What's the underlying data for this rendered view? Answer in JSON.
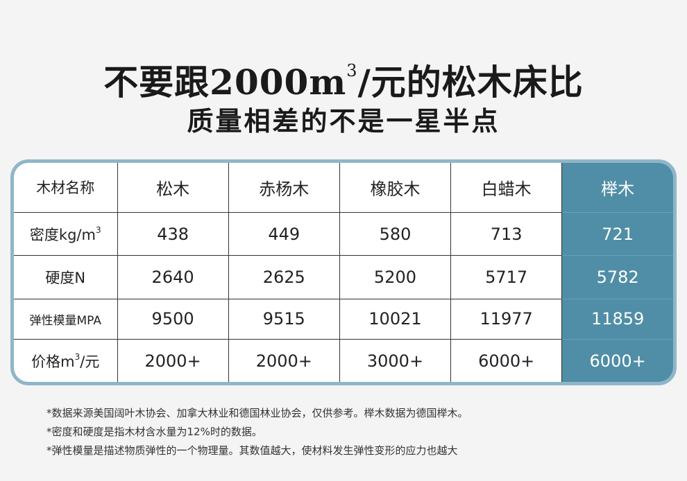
{
  "title": {
    "prefix": "不要跟2000m",
    "sup": "3",
    "suffix": "/元的松木床比"
  },
  "subtitle": "质量相差的不是一星半点",
  "table": {
    "header": {
      "label": "木材名称",
      "woods": [
        "松木",
        "赤杨木",
        "橡胶木",
        "白蜡木",
        "榉木"
      ]
    },
    "rows": [
      {
        "label": "密度kg/m",
        "label_sup": "3",
        "values": [
          "438",
          "449",
          "580",
          "713",
          "721"
        ]
      },
      {
        "label": "硬度N",
        "label_sup": "",
        "values": [
          "2640",
          "2625",
          "5200",
          "5717",
          "5782"
        ]
      },
      {
        "label": "弹性模量MPA",
        "label_sup": "",
        "values": [
          "9500",
          "9515",
          "10021",
          "11977",
          "11859"
        ]
      },
      {
        "label_prefix": "价格m",
        "label_sup": "3",
        "label_suffix": "/元",
        "values": [
          "2000+",
          "2000+",
          "3000+",
          "6000+",
          "6000+"
        ]
      }
    ],
    "highlight_color": "#4f8ea6",
    "border_color": "#8fb6c8"
  },
  "notes": [
    "*数据来源美国阔叶木协会、加拿大林业和德国林业协会，仅供参考。榉木数据为德国榉木。",
    "*密度和硬度是指木材含水量为12%时的数据。",
    "*弹性模量是描述物质弹性的一个物理量。其数值越大，使材料发生弹性变形的应力也越大"
  ]
}
